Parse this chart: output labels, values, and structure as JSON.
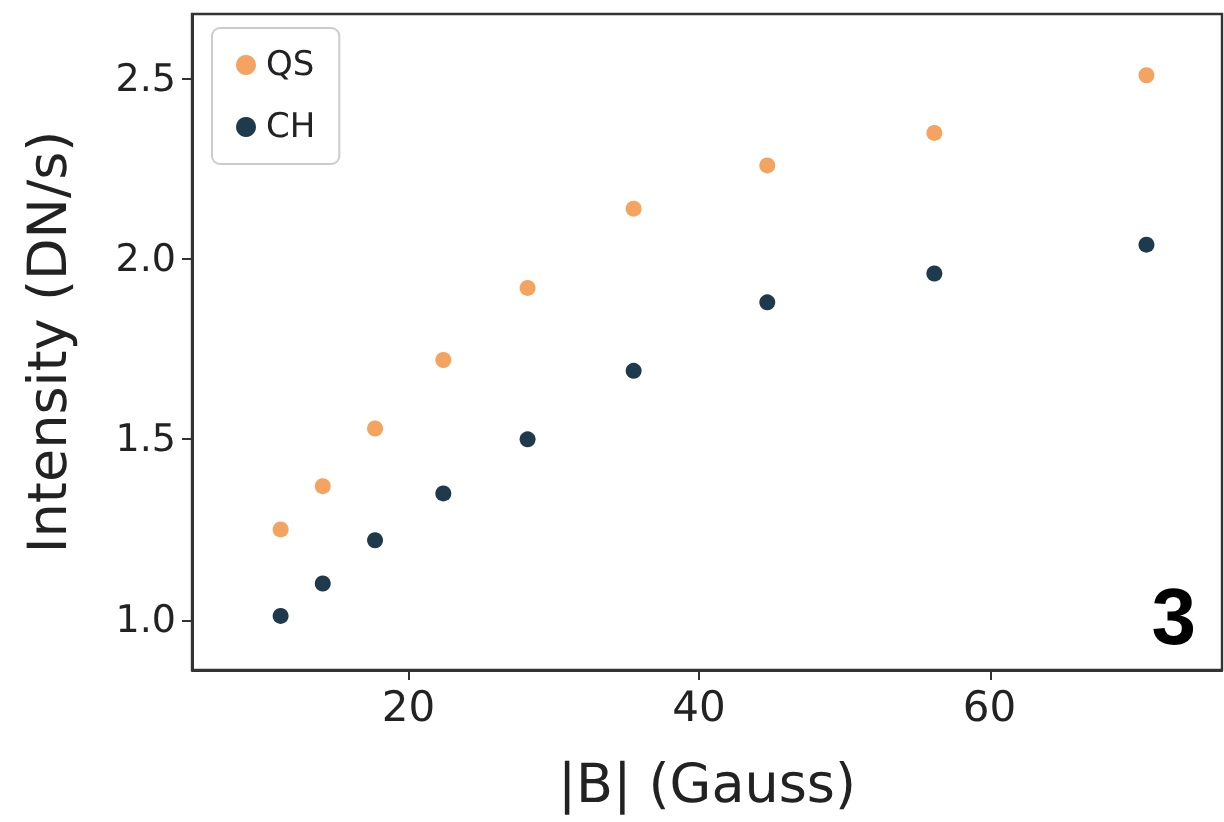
{
  "chart_data": {
    "type": "scatter",
    "xlabel": "|B| (Gauss)",
    "ylabel": "Intensity (DN/s)",
    "x": [
      11.2,
      14.1,
      17.7,
      22.4,
      28.2,
      35.5,
      44.7,
      56.2,
      70.8
    ],
    "series": [
      {
        "name": "QS",
        "color": "#f4a460",
        "values": [
          1.25,
          1.37,
          1.53,
          1.72,
          1.92,
          2.14,
          2.26,
          2.35,
          2.51
        ],
        "errors": [
          0.02,
          0.02,
          0.02,
          0.02,
          0.02,
          0.02,
          0.02,
          0.02,
          0.02
        ],
        "xerrors": [
          0.5,
          0.5,
          0.5,
          0.5,
          0.5,
          0.5,
          0.5,
          0.5,
          0.5
        ]
      },
      {
        "name": "CH",
        "color": "#1f3a4c",
        "values": [
          1.01,
          1.1,
          1.22,
          1.35,
          1.5,
          1.69,
          1.88,
          1.96,
          2.04
        ],
        "errors": [
          0.02,
          0.02,
          0.02,
          0.02,
          0.02,
          0.02,
          0.02,
          0.02,
          0.02
        ],
        "xerrors": [
          0.5,
          0.5,
          0.5,
          0.5,
          0.5,
          0.5,
          0.5,
          0.5,
          0.5
        ]
      }
    ],
    "xlim": [
      5.1,
      76
    ],
    "xticks": [
      20,
      40,
      60
    ],
    "ylim": [
      0.86,
      2.68
    ],
    "yticks": [
      {
        "value": 1,
        "label": "1.0"
      },
      1.5,
      {
        "value": 2,
        "label": "2.0"
      },
      2.5
    ],
    "grid": false,
    "legend": "top left",
    "marker": "circle",
    "annotations": [
      "3"
    ]
  }
}
